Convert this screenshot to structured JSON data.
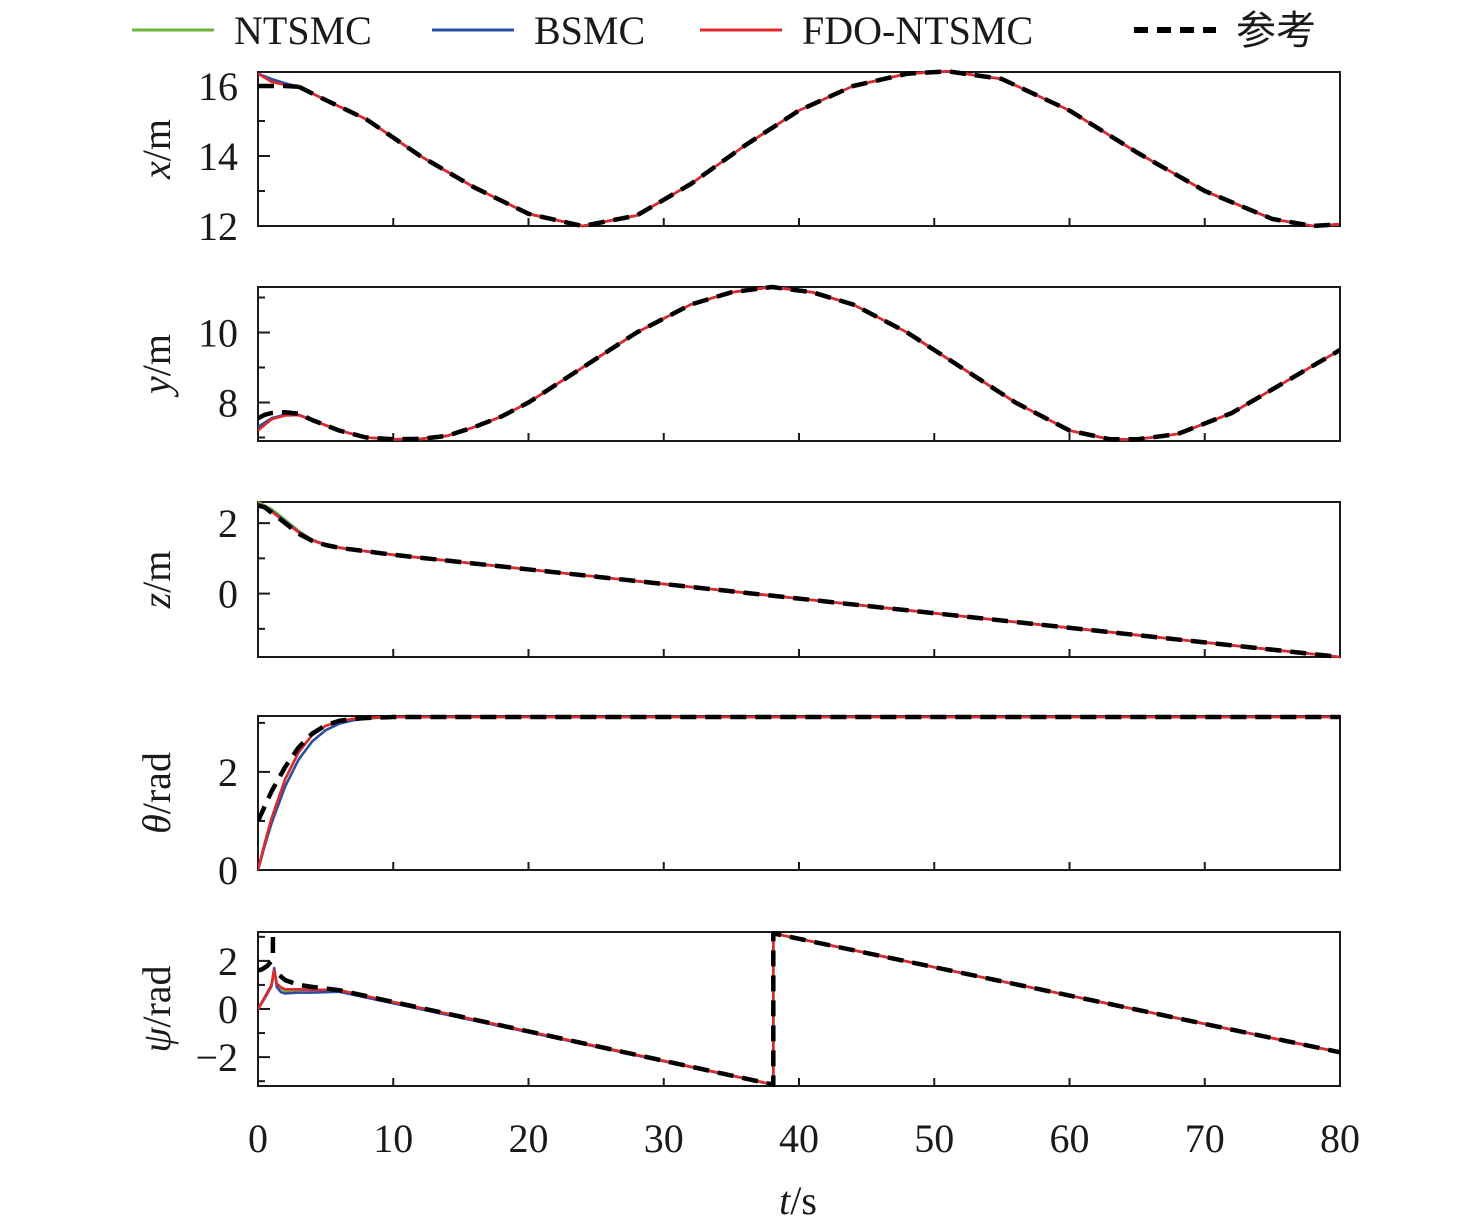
{
  "chart_data": {
    "type": "line",
    "legend": {
      "placement": "top",
      "entries": [
        {
          "name": "NTSMC",
          "color": "#6db33f",
          "dash": false
        },
        {
          "name": "BSMC",
          "color": "#2b4fa0",
          "dash": false
        },
        {
          "name": "FDO-NTSMC",
          "color": "#e0282e",
          "dash": false
        },
        {
          "name": "参考",
          "color": "#000000",
          "dash": true
        }
      ]
    },
    "xlabel_italic": "t",
    "xlabel_unit": "/s",
    "xlim": [
      0,
      80
    ],
    "xticks": [
      0,
      10,
      20,
      30,
      40,
      50,
      60,
      70,
      80
    ],
    "xtick_labels": [
      "0",
      "10",
      "20",
      "30",
      "40",
      "50",
      "60",
      "70",
      "80"
    ],
    "grid": false,
    "panels": [
      {
        "ylabel_italic": "x",
        "ylabel_unit": "/m",
        "ylim": [
          12,
          16.4
        ],
        "yticks": [
          12,
          14,
          16
        ],
        "ytick_labels": [
          "12",
          "14",
          "16"
        ],
        "yminor": [
          13,
          15
        ],
        "series": [
          {
            "name": "参考",
            "x": [
              0,
              1,
              2,
              3
            ],
            "y": [
              16.0,
              16.0,
              16.0,
              15.98
            ]
          },
          {
            "name": "参考",
            "x": [
              3,
              5,
              8,
              12,
              16,
              20,
              24,
              28,
              32,
              36,
              40,
              44,
              48,
              51,
              55,
              60,
              65,
              70,
              75,
              78,
              80
            ],
            "y": [
              15.98,
              15.6,
              15.05,
              14.0,
              13.1,
              12.35,
              12.0,
              12.3,
              13.2,
              14.3,
              15.3,
              16.0,
              16.35,
              16.42,
              16.2,
              15.3,
              14.1,
              13.0,
              12.2,
              12.0,
              12.05
            ]
          },
          {
            "name": "NTSMC",
            "x": [
              0,
              1,
              2,
              3,
              5,
              8,
              12,
              16,
              20,
              24,
              28,
              32,
              36,
              40,
              44,
              48,
              51,
              55,
              60,
              65,
              70,
              75,
              78,
              80
            ],
            "y": [
              16.35,
              16.15,
              16.05,
              15.98,
              15.6,
              15.05,
              14.0,
              13.1,
              12.35,
              12.0,
              12.3,
              13.2,
              14.3,
              15.3,
              16.0,
              16.35,
              16.42,
              16.2,
              15.3,
              14.1,
              13.0,
              12.2,
              12.0,
              12.05
            ]
          },
          {
            "name": "BSMC",
            "x": [
              0,
              1,
              2,
              3,
              5,
              8,
              12,
              16,
              20,
              24,
              28,
              32,
              36,
              40,
              44,
              48,
              51,
              55,
              60,
              65,
              70,
              75,
              78,
              80
            ],
            "y": [
              16.35,
              16.2,
              16.08,
              15.98,
              15.6,
              15.05,
              14.0,
              13.1,
              12.35,
              12.0,
              12.3,
              13.2,
              14.3,
              15.3,
              16.0,
              16.35,
              16.42,
              16.2,
              15.3,
              14.1,
              13.0,
              12.2,
              12.0,
              12.05
            ]
          },
          {
            "name": "FDO-NTSMC",
            "x": [
              0,
              1,
              2,
              3,
              5,
              8,
              12,
              16,
              20,
              24,
              28,
              32,
              36,
              40,
              44,
              48,
              51,
              55,
              60,
              65,
              70,
              75,
              78,
              80
            ],
            "y": [
              16.35,
              16.12,
              16.03,
              15.98,
              15.6,
              15.05,
              14.0,
              13.1,
              12.35,
              12.0,
              12.3,
              13.2,
              14.3,
              15.3,
              16.0,
              16.35,
              16.42,
              16.2,
              15.3,
              14.1,
              13.0,
              12.2,
              12.0,
              12.05
            ]
          }
        ]
      },
      {
        "ylabel_italic": "y",
        "ylabel_unit": "/m",
        "ylim": [
          6.9,
          11.3
        ],
        "yticks": [
          8,
          10
        ],
        "ytick_labels": [
          "8",
          "10"
        ],
        "yminor": [
          7,
          9,
          11
        ],
        "series": [
          {
            "name": "参考",
            "x": [
              0,
              0.5,
              1,
              2,
              3,
              4,
              6,
              8,
              10,
              12,
              14,
              16,
              18,
              20,
              24,
              28,
              32,
              35,
              38,
              41,
              44,
              48,
              52,
              56,
              60,
              63,
              65,
              68,
              72,
              76,
              80
            ],
            "y": [
              7.55,
              7.65,
              7.7,
              7.72,
              7.68,
              7.5,
              7.2,
              7.0,
              6.95,
              6.96,
              7.05,
              7.3,
              7.6,
              8.0,
              9.0,
              10.0,
              10.8,
              11.15,
              11.3,
              11.15,
              10.8,
              10.0,
              9.0,
              8.0,
              7.2,
              6.95,
              6.95,
              7.1,
              7.7,
              8.6,
              9.5
            ]
          },
          {
            "name": "NTSMC",
            "x": [
              0,
              1,
              2,
              3,
              4,
              6,
              8,
              10,
              12,
              14,
              16,
              18,
              20,
              24,
              28,
              32,
              35,
              38,
              41,
              44,
              48,
              52,
              56,
              60,
              63,
              65,
              68,
              72,
              76,
              80
            ],
            "y": [
              7.3,
              7.55,
              7.65,
              7.65,
              7.5,
              7.2,
              7.0,
              6.95,
              6.96,
              7.05,
              7.3,
              7.6,
              8.0,
              9.0,
              10.0,
              10.8,
              11.15,
              11.3,
              11.15,
              10.8,
              10.0,
              9.0,
              8.0,
              7.2,
              6.95,
              6.95,
              7.1,
              7.7,
              8.6,
              9.5
            ]
          },
          {
            "name": "BSMC",
            "x": [
              0,
              1,
              2,
              3,
              4,
              6,
              8,
              10,
              12,
              14,
              16,
              18,
              20,
              24,
              28,
              32,
              35,
              38,
              41,
              44,
              48,
              52,
              56,
              60,
              63,
              65,
              68,
              72,
              76,
              80
            ],
            "y": [
              7.3,
              7.55,
              7.65,
              7.65,
              7.5,
              7.2,
              7.0,
              6.95,
              6.96,
              7.05,
              7.3,
              7.6,
              8.0,
              9.0,
              10.0,
              10.8,
              11.15,
              11.3,
              11.15,
              10.8,
              10.0,
              9.0,
              8.0,
              7.2,
              6.95,
              6.95,
              7.1,
              7.7,
              8.6,
              9.5
            ]
          },
          {
            "name": "FDO-NTSMC",
            "x": [
              0,
              1,
              2,
              3,
              4,
              6,
              8,
              10,
              12,
              14,
              16,
              18,
              20,
              24,
              28,
              32,
              35,
              38,
              41,
              44,
              48,
              52,
              56,
              60,
              63,
              65,
              68,
              72,
              76,
              80
            ],
            "y": [
              7.2,
              7.52,
              7.63,
              7.64,
              7.5,
              7.2,
              7.0,
              6.95,
              6.96,
              7.05,
              7.3,
              7.6,
              8.0,
              9.0,
              10.0,
              10.8,
              11.15,
              11.3,
              11.15,
              10.8,
              10.0,
              9.0,
              8.0,
              7.2,
              6.95,
              6.95,
              7.1,
              7.7,
              8.6,
              9.5
            ]
          }
        ]
      },
      {
        "ylabel_italic": "z",
        "ylabel_unit": "/m",
        "ylim": [
          -1.8,
          2.6
        ],
        "yticks": [
          0,
          2
        ],
        "ytick_labels": [
          "0",
          "2"
        ],
        "yminor": [
          -1,
          1
        ],
        "series": [
          {
            "name": "参考",
            "x": [
              0,
              0.5,
              1,
              2,
              3,
              4,
              5,
              6,
              8,
              10,
              80
            ],
            "y": [
              2.5,
              2.45,
              2.3,
              2.0,
              1.7,
              1.5,
              1.38,
              1.3,
              1.2,
              1.1,
              -1.8
            ]
          },
          {
            "name": "NTSMC",
            "x": [
              0,
              1,
              2,
              3,
              4,
              5,
              6,
              8,
              10,
              80
            ],
            "y": [
              2.6,
              2.4,
              2.1,
              1.78,
              1.53,
              1.39,
              1.31,
              1.2,
              1.1,
              -1.8
            ]
          },
          {
            "name": "BSMC",
            "x": [
              0,
              1,
              2,
              3,
              4,
              5,
              6,
              8,
              10,
              80
            ],
            "y": [
              2.55,
              2.35,
              2.05,
              1.75,
              1.52,
              1.38,
              1.3,
              1.2,
              1.1,
              -1.8
            ]
          },
          {
            "name": "FDO-NTSMC",
            "x": [
              0,
              1,
              2,
              3,
              4,
              5,
              6,
              8,
              10,
              80
            ],
            "y": [
              2.55,
              2.33,
              2.03,
              1.74,
              1.51,
              1.38,
              1.3,
              1.2,
              1.1,
              -1.8
            ]
          }
        ]
      },
      {
        "ylabel_italic": "θ",
        "ylabel_unit": "/rad",
        "ylim": [
          0,
          3.14
        ],
        "yticks": [
          0,
          2
        ],
        "ytick_labels": [
          "0",
          "2"
        ],
        "yminor": [
          1,
          3
        ],
        "series": [
          {
            "name": "参考",
            "x": [
              0,
              0.5,
              1,
              2,
              3,
              4,
              5,
              6,
              7,
              8,
              10,
              80
            ],
            "y": [
              1.0,
              1.3,
              1.6,
              2.1,
              2.5,
              2.78,
              2.95,
              3.04,
              3.08,
              3.1,
              3.12,
              3.12
            ]
          },
          {
            "name": "NTSMC",
            "x": [
              0,
              0.5,
              1,
              2,
              3,
              4,
              5,
              6,
              7,
              8,
              10,
              80
            ],
            "y": [
              0,
              0.55,
              1.05,
              1.85,
              2.4,
              2.75,
              2.94,
              3.03,
              3.08,
              3.1,
              3.12,
              3.12
            ]
          },
          {
            "name": "BSMC",
            "x": [
              0,
              0.5,
              1,
              2,
              3,
              4,
              5,
              6,
              7,
              8,
              10,
              80
            ],
            "y": [
              0,
              0.5,
              0.95,
              1.7,
              2.25,
              2.62,
              2.85,
              2.98,
              3.05,
              3.09,
              3.12,
              3.12
            ]
          },
          {
            "name": "FDO-NTSMC",
            "x": [
              0,
              0.5,
              1,
              2,
              3,
              4,
              5,
              6,
              7,
              8,
              10,
              80
            ],
            "y": [
              0,
              0.55,
              1.05,
              1.85,
              2.4,
              2.75,
              2.94,
              3.03,
              3.08,
              3.1,
              3.12,
              3.12
            ]
          }
        ]
      },
      {
        "ylabel_italic": "ψ",
        "ylabel_unit": "/rad",
        "ylim": [
          -3.2,
          3.2
        ],
        "yticks": [
          -2,
          0,
          2
        ],
        "ytick_labels": [
          "−2",
          "0",
          "2"
        ],
        "yminor": [
          -3,
          -1,
          1,
          3
        ],
        "series": [
          {
            "name": "参考",
            "x": [
              0,
              0.3,
              0.7,
              1.0,
              1.1,
              1.1
            ],
            "y": [
              1.6,
              1.65,
              1.8,
              2.0,
              2.3,
              3.0
            ]
          },
          {
            "name": "参考",
            "x": [
              1.6,
              2.0,
              3.0,
              4.0,
              5.0,
              6.0,
              38.1,
              38.1,
              80
            ],
            "y": [
              1.4,
              1.2,
              1.0,
              0.92,
              0.85,
              0.78,
              -3.14,
              3.14,
              -1.8
            ]
          },
          {
            "name": "NTSMC",
            "x": [
              0,
              0.5,
              1.0,
              1.2,
              1.4,
              1.7,
              2.0,
              3.0,
              4.0,
              5.0,
              6.0,
              38.1,
              38.1,
              80
            ],
            "y": [
              0,
              0.5,
              1.0,
              1.6,
              1.0,
              0.85,
              0.75,
              0.8,
              0.8,
              0.8,
              0.78,
              -3.14,
              3.14,
              -1.8
            ]
          },
          {
            "name": "BSMC",
            "x": [
              0,
              0.5,
              1.0,
              1.2,
              1.4,
              1.7,
              2.0,
              3.0,
              4.0,
              5.0,
              6.0,
              38.1,
              38.1,
              80
            ],
            "y": [
              0,
              0.45,
              0.95,
              1.7,
              0.9,
              0.7,
              0.65,
              0.68,
              0.68,
              0.7,
              0.72,
              -3.14,
              3.14,
              -1.8
            ]
          },
          {
            "name": "FDO-NTSMC",
            "x": [
              0,
              0.5,
              1.0,
              1.2,
              1.4,
              1.7,
              2.0,
              3.0,
              4.0,
              5.0,
              6.0,
              38.1,
              38.1,
              80
            ],
            "y": [
              0,
              0.5,
              1.0,
              1.6,
              1.05,
              0.9,
              0.82,
              0.82,
              0.8,
              0.8,
              0.78,
              -3.14,
              3.14,
              -1.8
            ]
          }
        ]
      }
    ]
  }
}
